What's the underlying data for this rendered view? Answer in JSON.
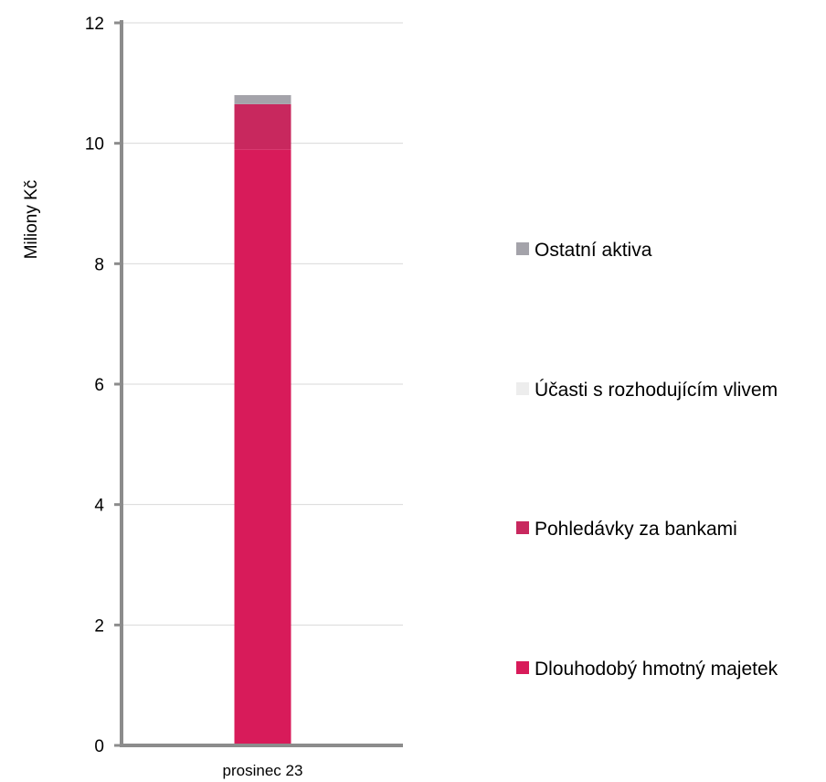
{
  "chart_data": {
    "type": "bar",
    "stacked": true,
    "categories": [
      "prosinec 23"
    ],
    "series": [
      {
        "name": "Dlouhodobý hmotný majetek",
        "values": [
          9.9
        ],
        "color": "#D81B5A"
      },
      {
        "name": "Pohledávky za bankami",
        "values": [
          0.75
        ],
        "color": "#C8285E"
      },
      {
        "name": "Účasti s rozhodujícím vlivem",
        "values": [
          0.0
        ],
        "color": "#EDEDED"
      },
      {
        "name": "Ostatní aktiva",
        "values": [
          0.15
        ],
        "color": "#A4A3AA"
      }
    ],
    "legend_order": [
      "Ostatní aktiva",
      "Účasti s rozhodujícím vlivem",
      "Pohledávky za bankami",
      "Dlouhodobý hmotný majetek"
    ],
    "legend_position": "right",
    "ylabel": "Miliony Kč",
    "xlabel": "",
    "ylim": [
      0,
      12
    ],
    "yticks": [
      0,
      2,
      4,
      6,
      8,
      10,
      12
    ],
    "grid": true
  }
}
